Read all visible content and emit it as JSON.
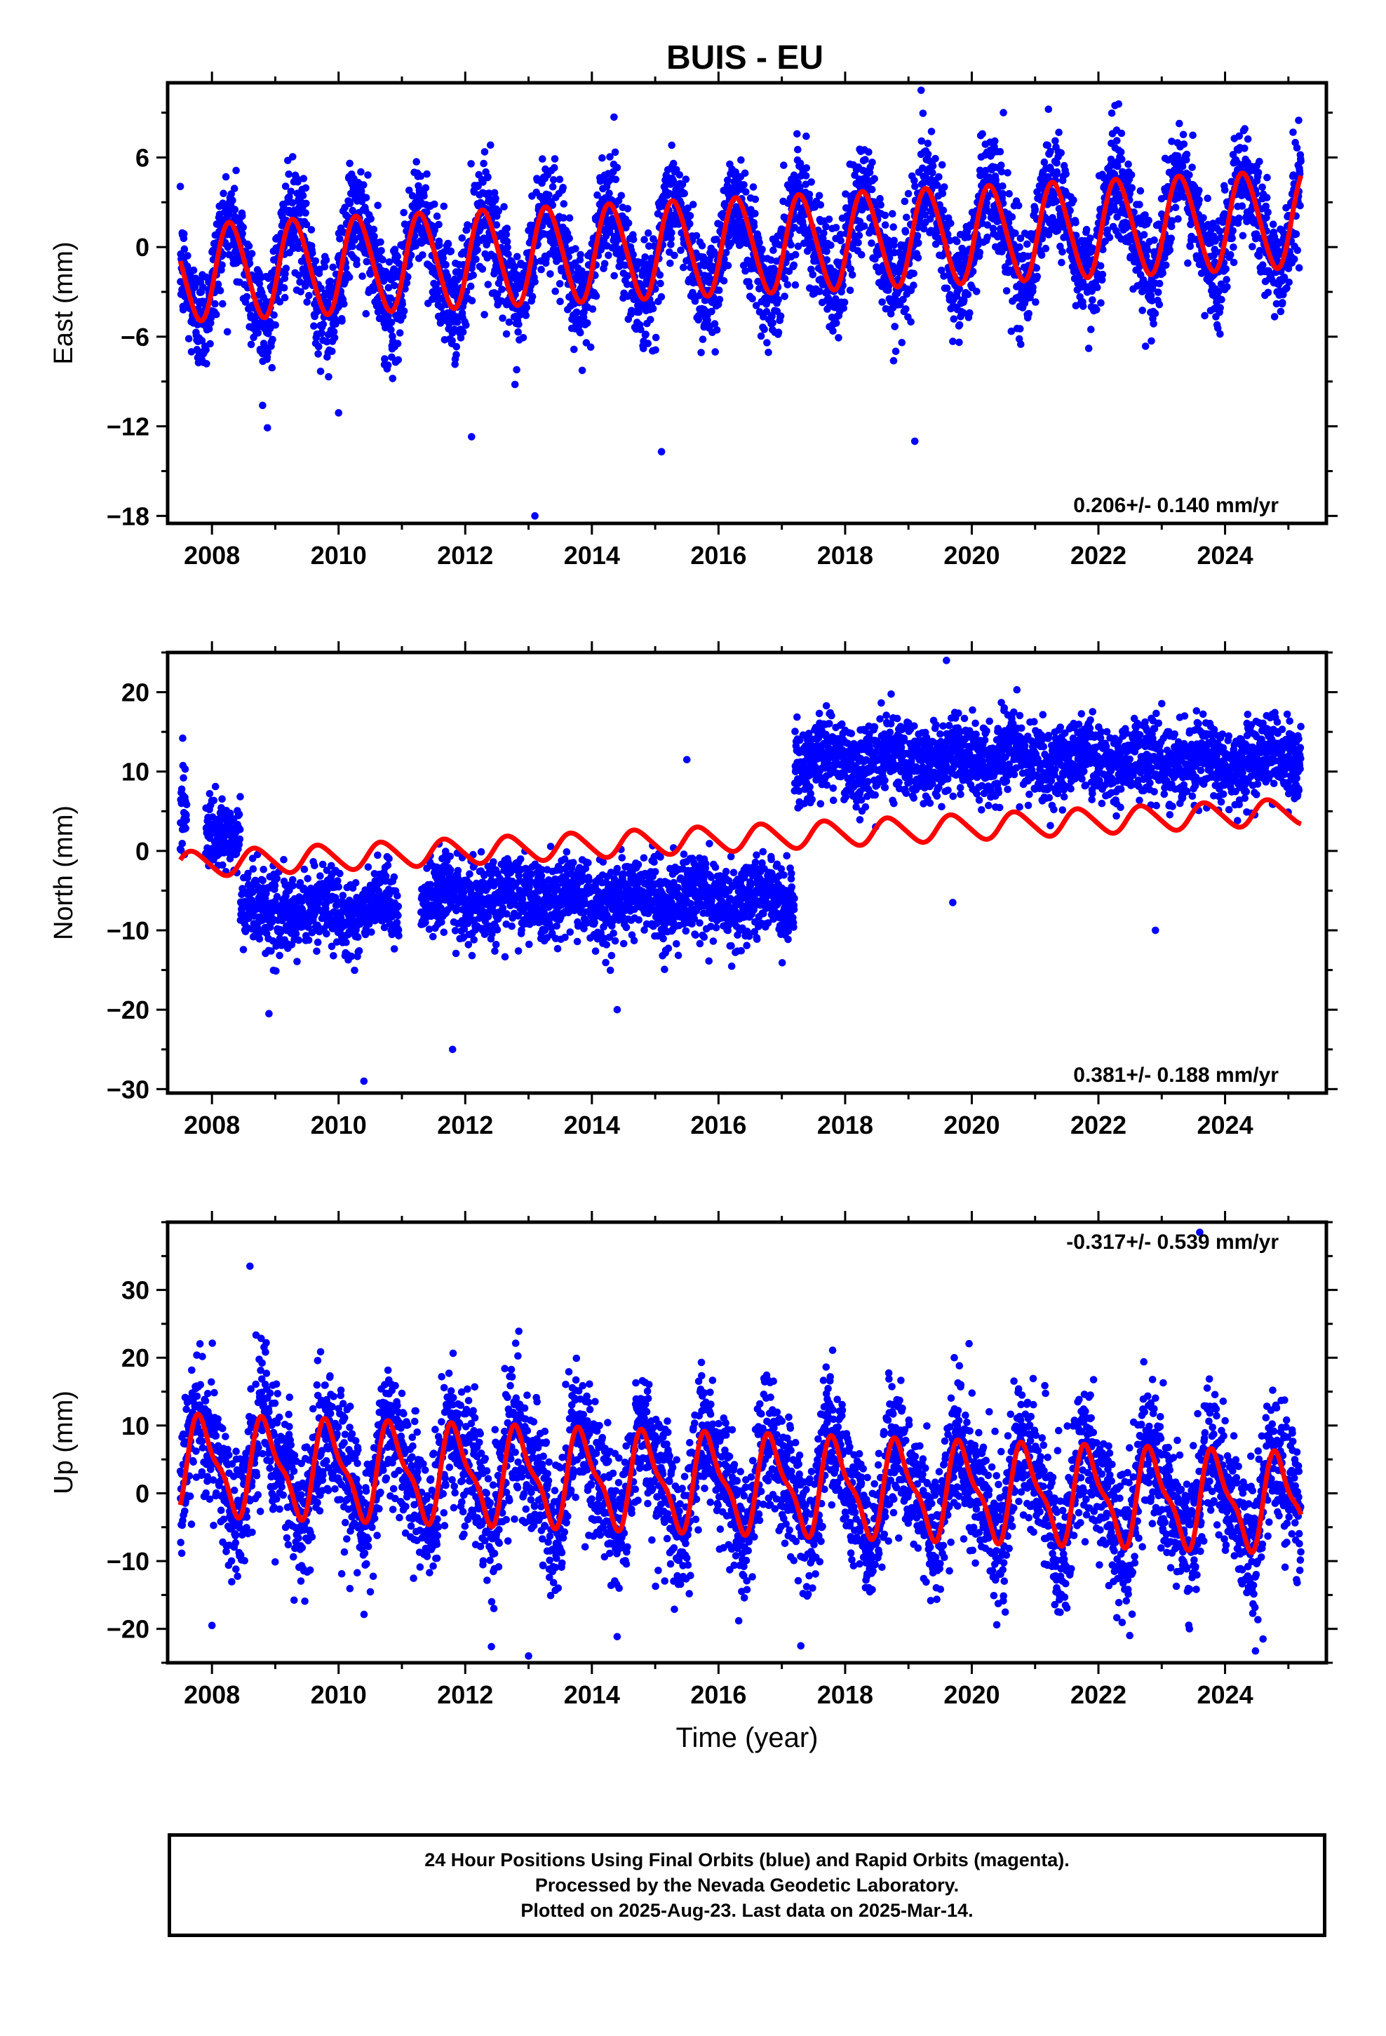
{
  "title": "BUIS - EU",
  "caption": [
    "24 Hour Positions Using Final Orbits (blue) and Rapid Orbits (magenta).",
    "Processed by the Nevada Geodetic Laboratory.",
    "Plotted on 2025-Aug-23. Last data on 2025-Mar-14."
  ],
  "colors": {
    "points": "#0000ff",
    "model": "#ff0000",
    "axes": "#000000"
  },
  "chart_data": [
    {
      "type": "scatter",
      "panel": "east",
      "ylabel": "East (mm)",
      "xlabel": "",
      "xlim": [
        2007.3,
        2025.6
      ],
      "ylim": [
        -18.5,
        11
      ],
      "yticks": [
        -18,
        -12,
        -6,
        0,
        6
      ],
      "ytick_labels": [
        "−18",
        "−12",
        "−6",
        "0",
        "6"
      ],
      "xticks": [
        2008,
        2010,
        2012,
        2014,
        2016,
        2018,
        2020,
        2022,
        2024
      ],
      "xtick_labels": [
        "2008",
        "2010",
        "2012",
        "2014",
        "2016",
        "2018",
        "2020",
        "2022",
        "2024"
      ],
      "rate_annotation": "0.206+/- 0.140 mm/yr",
      "rate_position": "bottom-right",
      "data_range": [
        2007.5,
        2025.2
      ],
      "model": {
        "offset": 0.0,
        "trend": 0.206,
        "annual_amp": 3.2,
        "annual_phase": 0.05,
        "semiannual_amp": 0.3,
        "ref_epoch": 2016.0
      },
      "noise_sd": 1.8,
      "offsets": [],
      "outliers": [
        [
          2019.2,
          10.5
        ],
        [
          2020.5,
          9.0
        ],
        [
          2013.1,
          -18.0
        ],
        [
          2015.1,
          -13.7
        ],
        [
          2019.1,
          -13.0
        ],
        [
          2012.1,
          -12.7
        ],
        [
          2008.8,
          -10.6
        ],
        [
          2010.0,
          -11.1
        ]
      ]
    },
    {
      "type": "scatter",
      "panel": "north",
      "ylabel": "North (mm)",
      "xlabel": "",
      "xlim": [
        2007.3,
        2025.6
      ],
      "ylim": [
        -30.5,
        25
      ],
      "yticks": [
        -30,
        -20,
        -10,
        0,
        10,
        20
      ],
      "ytick_labels": [
        "−30",
        "−20",
        "−10",
        "0",
        "10",
        "20"
      ],
      "xticks": [
        2008,
        2010,
        2012,
        2014,
        2016,
        2018,
        2020,
        2022,
        2024
      ],
      "xtick_labels": [
        "2008",
        "2010",
        "2012",
        "2014",
        "2016",
        "2018",
        "2020",
        "2022",
        "2024"
      ],
      "rate_annotation": "0.381+/- 0.188 mm/yr",
      "rate_position": "bottom-right",
      "data_range": [
        2007.5,
        2025.2
      ],
      "segments": [
        [
          2007.5,
          2007.6,
          5.0
        ],
        [
          2007.9,
          2008.45,
          2.0
        ],
        [
          2008.45,
          2010.95,
          -7.5
        ],
        [
          2011.3,
          2017.2,
          -6.0
        ],
        [
          2017.2,
          2025.2,
          11.5
        ]
      ],
      "model": {
        "offset": 1.5,
        "trend": 0.381,
        "annual_amp": 1.6,
        "annual_phase": 0.45,
        "semiannual_amp": 0.2,
        "ref_epoch": 2016.0
      },
      "noise_sd": 2.4,
      "offsets": [
        2008.45,
        2017.2
      ],
      "outliers": [
        [
          2019.6,
          24.0
        ],
        [
          2010.4,
          -29.0
        ],
        [
          2011.8,
          -25.0
        ],
        [
          2008.9,
          -20.5
        ],
        [
          2014.4,
          -20.0
        ],
        [
          2015.5,
          11.5
        ],
        [
          2022.9,
          -10.0
        ],
        [
          2019.7,
          -6.5
        ]
      ]
    },
    {
      "type": "scatter",
      "panel": "up",
      "ylabel": "Up (mm)",
      "xlabel": "Time (year)",
      "xlim": [
        2007.3,
        2025.6
      ],
      "ylim": [
        -25,
        40
      ],
      "yticks": [
        -20,
        -10,
        0,
        10,
        20,
        30
      ],
      "ytick_labels": [
        "−20",
        "−10",
        "0",
        "10",
        "20",
        "30"
      ],
      "xticks": [
        2008,
        2010,
        2012,
        2014,
        2016,
        2018,
        2020,
        2022,
        2024
      ],
      "xtick_labels": [
        "2008",
        "2010",
        "2012",
        "2014",
        "2016",
        "2018",
        "2020",
        "2022",
        "2024"
      ],
      "rate_annotation": "-0.317+/- 0.539 mm/yr",
      "rate_position": "top-right",
      "data_range": [
        2007.5,
        2025.2
      ],
      "model": {
        "offset": 1.5,
        "trend": -0.317,
        "annual_amp": 6.5,
        "annual_phase": 0.6,
        "semiannual_amp": 2.2,
        "ref_epoch": 2016.0
      },
      "noise_sd": 5.0,
      "offsets": [],
      "outliers": [
        [
          2008.6,
          33.5
        ],
        [
          2023.6,
          38.5
        ],
        [
          2013.0,
          -24.0
        ],
        [
          2017.3,
          -22.5
        ],
        [
          2024.6,
          -21.5
        ],
        [
          2008.0,
          -19.5
        ]
      ]
    }
  ]
}
